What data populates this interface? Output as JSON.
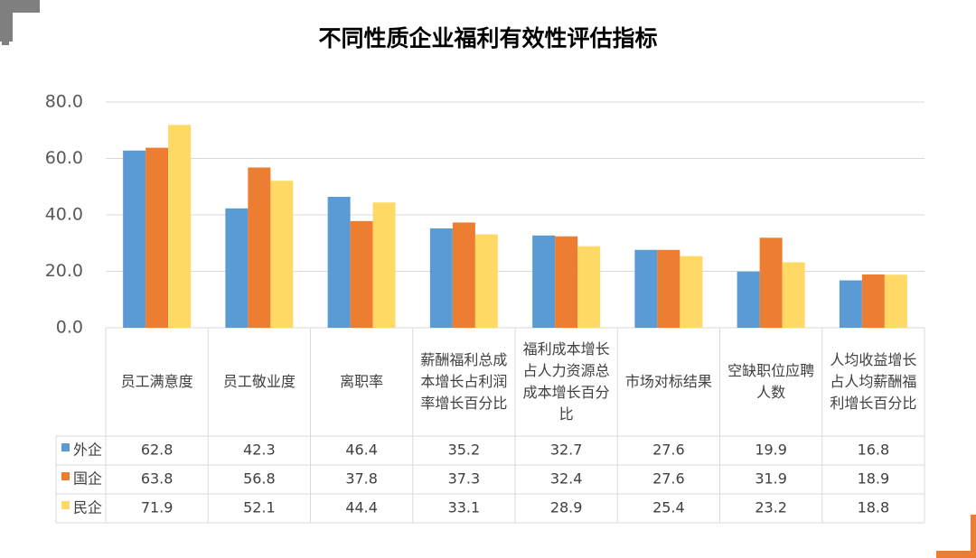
{
  "chart_data": {
    "type": "bar",
    "title": "不同性质企业福利有效性评估指标",
    "categories": [
      "员工满意度",
      "员工敬业度",
      "离职率",
      "薪酬福利总成本增长占利润率增长百分比",
      "福利成本增长占人力资源总成本增长百分比",
      "市场对标结果",
      "空缺职位应聘人数",
      "人均收益增长占人均薪酬福利增长百分比"
    ],
    "series": [
      {
        "name": "外企",
        "color": "#5b9bd5",
        "values": [
          62.8,
          42.3,
          46.4,
          35.2,
          32.7,
          27.6,
          19.9,
          16.8
        ]
      },
      {
        "name": "国企",
        "color": "#ed7d31",
        "values": [
          63.8,
          56.8,
          37.8,
          37.3,
          32.4,
          27.6,
          31.9,
          18.9
        ]
      },
      {
        "name": "民企",
        "color": "#ffd966",
        "values": [
          71.9,
          52.1,
          44.4,
          33.1,
          28.9,
          25.4,
          23.2,
          18.8
        ]
      }
    ],
    "ylim": [
      0,
      80
    ],
    "yticks": [
      {
        "value": 0,
        "label": "0.0"
      },
      {
        "value": 20,
        "label": "20.0"
      },
      {
        "value": 40,
        "label": "40.0"
      },
      {
        "value": 60,
        "label": "60.0"
      },
      {
        "value": 80,
        "label": "80.0"
      }
    ],
    "grid": true
  }
}
